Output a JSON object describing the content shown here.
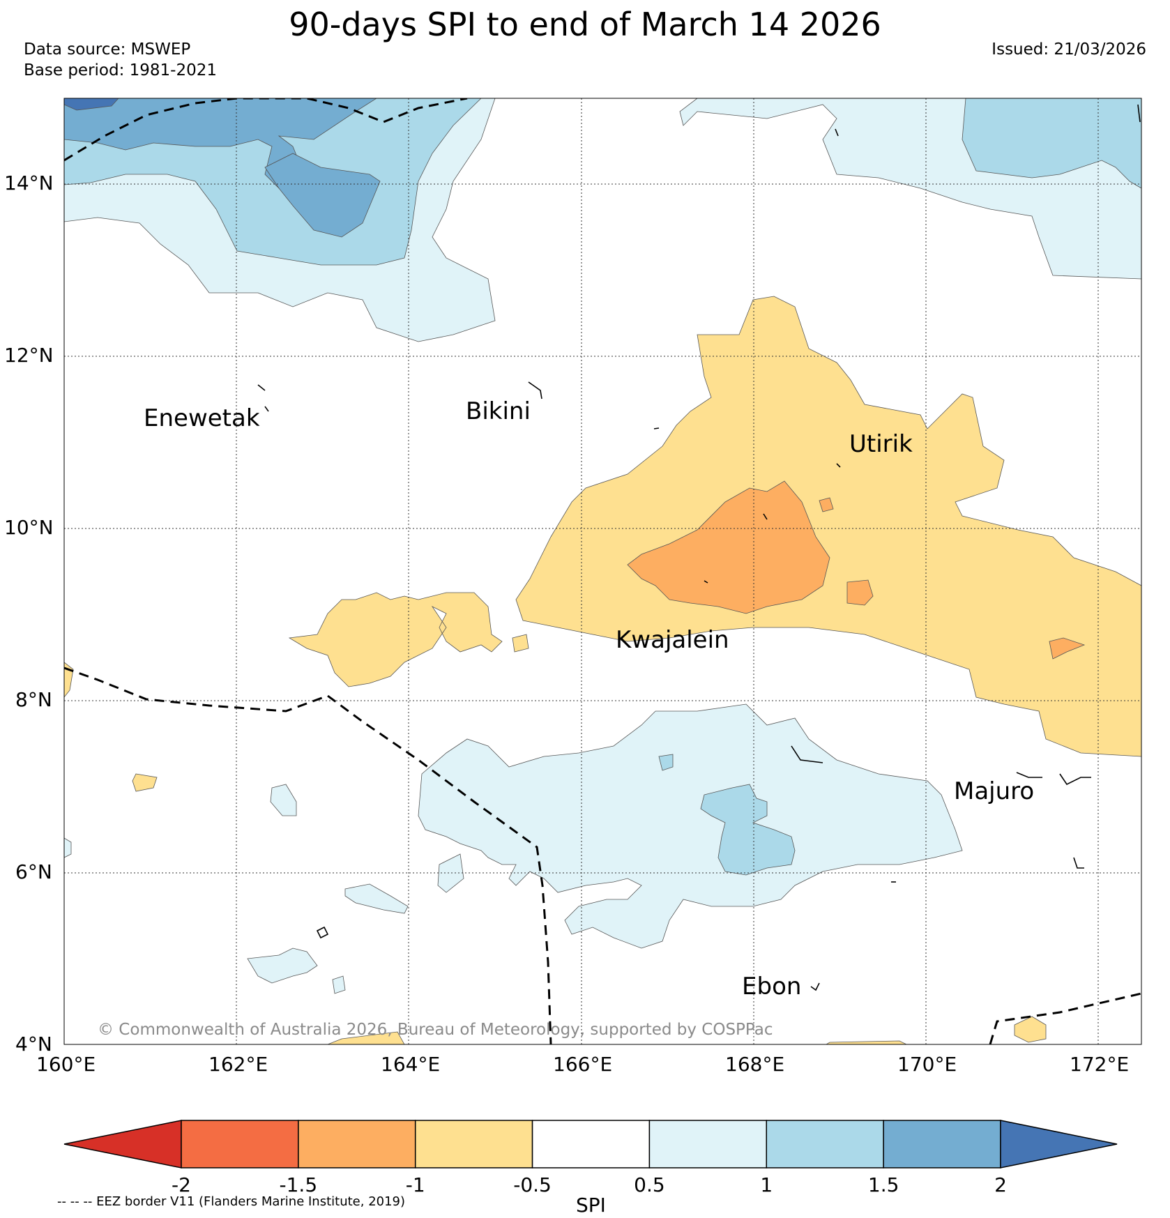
{
  "header": {
    "title": "90-days SPI to end of March 14 2026",
    "data_source": "Data source: MSWEP",
    "base_period": "Base period: 1981-2021",
    "issued": "Issued: 21/03/2026"
  },
  "map": {
    "lat_labels": [
      "14°N",
      "12°N",
      "10°N",
      "8°N",
      "6°N",
      "4°N"
    ],
    "lon_labels": [
      "160°E",
      "162°E",
      "164°E",
      "166°E",
      "168°E",
      "170°E",
      "172°E"
    ],
    "places": [
      "Enewetak",
      "Bikini",
      "Utirik",
      "Kwajalein",
      "Majuro",
      "Ebon"
    ],
    "copyright": "© Commonwealth of Australia 2026, Bureau of Meteorology, supported by COSPPac"
  },
  "colorbar": {
    "label": "SPI",
    "ticks": [
      "-2",
      "-1.5",
      "-1",
      "-0.5",
      "0.5",
      "1",
      "1.5",
      "2"
    ],
    "colors": [
      "#d73027",
      "#f46d43",
      "#fdae61",
      "#fee090",
      "#ffffff",
      "#e0f3f8",
      "#abd9e9",
      "#74add1",
      "#4575b4"
    ],
    "eez_note": "-- -- -- EEZ border V11 (Flanders Marine Institute, 2019)"
  }
}
